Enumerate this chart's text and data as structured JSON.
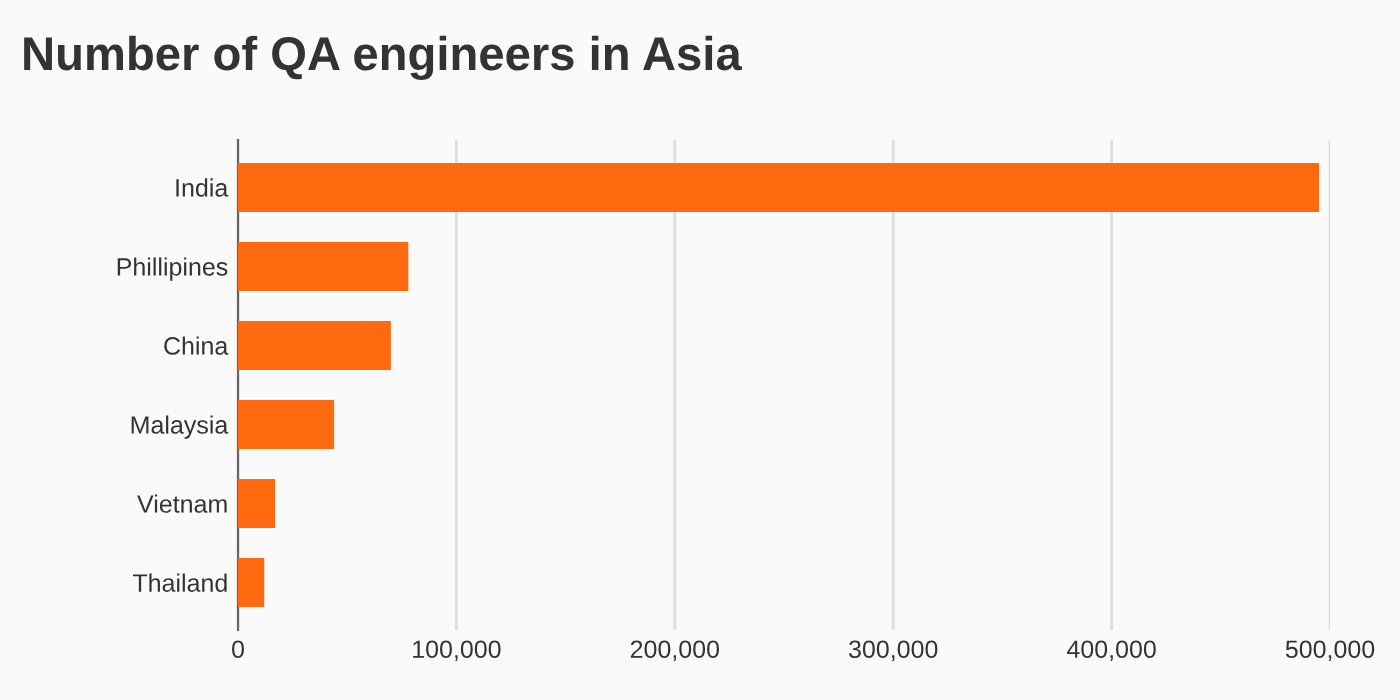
{
  "chart_data": {
    "type": "bar",
    "orientation": "horizontal",
    "title": "Number of QA engineers in Asia",
    "categories": [
      "India",
      "Phillipines",
      "China",
      "Malaysia",
      "Vietnam",
      "Thailand"
    ],
    "values": [
      495000,
      78000,
      70000,
      44000,
      17000,
      12000
    ],
    "color": "#ff6a10",
    "xlim": [
      0,
      500000
    ],
    "xticks": [
      {
        "value": 0,
        "label": "0"
      },
      {
        "value": 100000,
        "label": "100,000"
      },
      {
        "value": 200000,
        "label": "200,000"
      },
      {
        "value": 300000,
        "label": "300,000"
      },
      {
        "value": 400000,
        "label": "400,000"
      },
      {
        "value": 500000,
        "label": "500,000"
      }
    ],
    "grid": "x"
  }
}
